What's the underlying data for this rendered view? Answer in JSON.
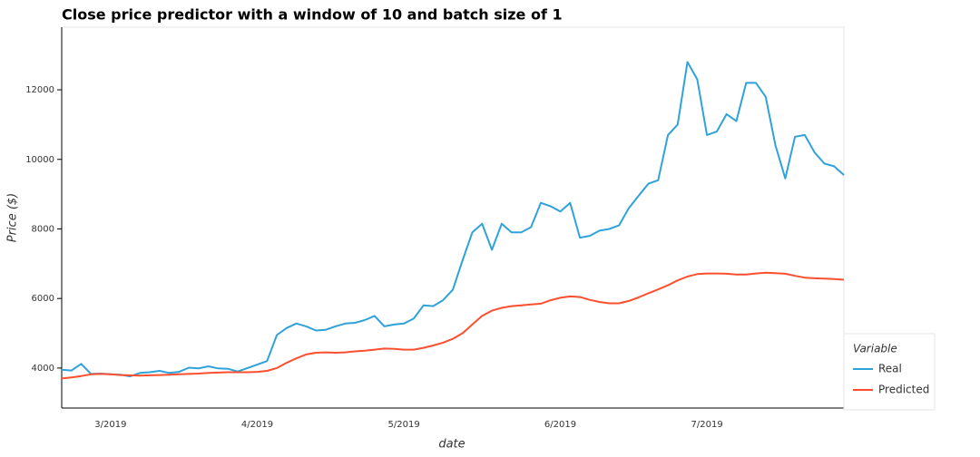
{
  "chart_data": {
    "type": "line",
    "title": "Close price predictor with a window of 10 and batch size of 1",
    "xlabel": "date",
    "ylabel": "Price ($)",
    "legend_title": "Variable",
    "categories": [
      null,
      null,
      null,
      null,
      null,
      "3/2019",
      null,
      null,
      null,
      null,
      null,
      null,
      null,
      null,
      null,
      null,
      null,
      null,
      null,
      null,
      "4/2019",
      null,
      null,
      null,
      null,
      null,
      null,
      null,
      null,
      null,
      null,
      null,
      null,
      null,
      null,
      "5/2019",
      null,
      null,
      null,
      null,
      null,
      null,
      null,
      null,
      null,
      null,
      null,
      null,
      null,
      null,
      null,
      "6/2019",
      null,
      null,
      null,
      null,
      null,
      null,
      null,
      null,
      null,
      null,
      null,
      null,
      null,
      null,
      "7/2019",
      null,
      null,
      null,
      null,
      null,
      null,
      null,
      null,
      null,
      null,
      null,
      null,
      null,
      null
    ],
    "series": [
      {
        "name": "Real",
        "color": "#30a2da",
        "values": [
          3950,
          3930,
          4120,
          3830,
          3840,
          3820,
          3810,
          3760,
          3860,
          3880,
          3920,
          3860,
          3890,
          4010,
          3990,
          4050,
          3990,
          3980,
          3900,
          4000,
          4100,
          4200,
          4950,
          5150,
          5280,
          5200,
          5080,
          5100,
          5200,
          5280,
          5300,
          5380,
          5500,
          5200,
          5250,
          5280,
          5420,
          5800,
          5780,
          5950,
          6250,
          7100,
          7900,
          8150,
          7400,
          8150,
          7900,
          7900,
          8050,
          8750,
          8650,
          8500,
          8750,
          7750,
          7800,
          7950,
          8000,
          8100,
          8600,
          8950,
          9300,
          9400,
          10700,
          11000,
          12800,
          12300,
          10700,
          10800,
          11300,
          11100,
          12200,
          12200,
          11800,
          10400,
          9450,
          10650,
          10700,
          10200,
          9880,
          9800,
          9550
        ]
      },
      {
        "name": "Predicted",
        "color": "#fc4f30",
        "values": [
          3700,
          3730,
          3770,
          3820,
          3830,
          3820,
          3800,
          3790,
          3780,
          3790,
          3800,
          3810,
          3820,
          3830,
          3840,
          3860,
          3870,
          3880,
          3880,
          3880,
          3890,
          3920,
          4000,
          4150,
          4280,
          4390,
          4440,
          4450,
          4440,
          4450,
          4480,
          4500,
          4530,
          4560,
          4550,
          4530,
          4530,
          4580,
          4650,
          4730,
          4840,
          5000,
          5250,
          5500,
          5650,
          5730,
          5780,
          5800,
          5830,
          5850,
          5950,
          6020,
          6060,
          6040,
          5960,
          5900,
          5860,
          5860,
          5930,
          6030,
          6150,
          6260,
          6380,
          6520,
          6630,
          6700,
          6720,
          6720,
          6710,
          6690,
          6690,
          6720,
          6740,
          6730,
          6710,
          6650,
          6600,
          6580,
          6570,
          6560,
          6540
        ]
      }
    ],
    "ylim": [
      2850,
      13800
    ],
    "yticks": [
      4000,
      6000,
      8000,
      10000,
      12000
    ]
  }
}
